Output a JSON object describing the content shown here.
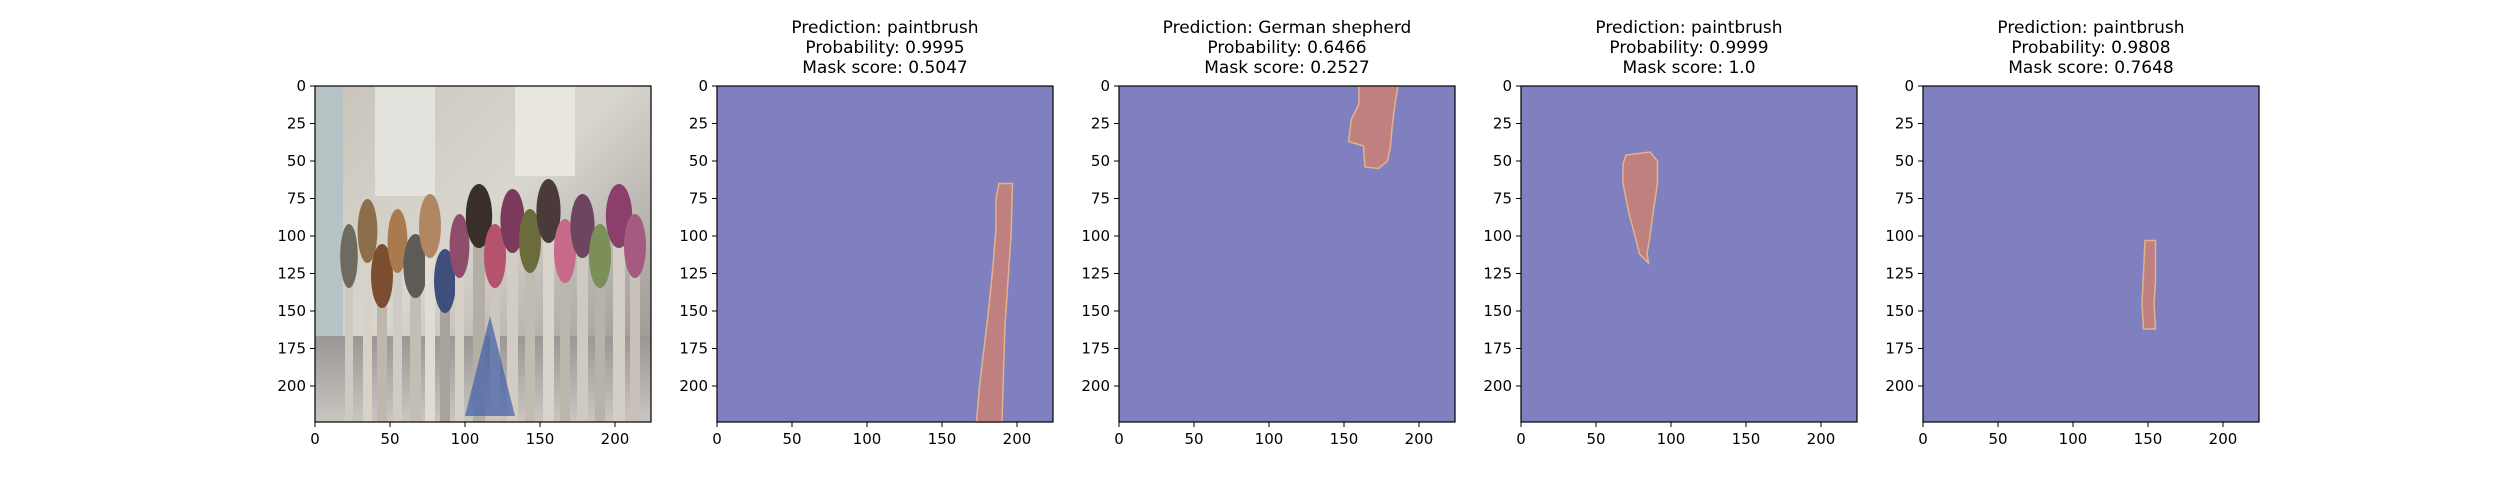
{
  "figure": {
    "panel_count": 5
  },
  "colors": {
    "mask_background": "#8080c0",
    "mask_region": "#c08080",
    "mask_edge": "#e0b48a",
    "axis": "#000000"
  },
  "chart_data": [
    {
      "type": "image",
      "image_content": "photo of paintbrushes standing in a jar",
      "title_lines": [],
      "x_ticks": [
        "0",
        "50",
        "100",
        "150",
        "200"
      ],
      "y_ticks": [
        "0",
        "25",
        "50",
        "75",
        "100",
        "125",
        "150",
        "175",
        "200"
      ],
      "xlim": [
        0,
        224
      ],
      "ylim": [
        224,
        0
      ]
    },
    {
      "type": "heatmap",
      "title_lines": [
        "Prediction: paintbrush",
        "Probability: 0.9995",
        "Mask score: 0.5047"
      ],
      "prediction": "paintbrush",
      "probability": 0.9995,
      "mask_score": 0.5047,
      "x_ticks": [
        "0",
        "50",
        "100",
        "150",
        "200"
      ],
      "y_ticks": [
        "0",
        "25",
        "50",
        "75",
        "100",
        "125",
        "150",
        "175",
        "200"
      ],
      "xlim": [
        0,
        224
      ],
      "ylim": [
        224,
        0
      ],
      "mask_polygon": [
        [
          188,
          65
        ],
        [
          197,
          65
        ],
        [
          196,
          100
        ],
        [
          194,
          130
        ],
        [
          192,
          160
        ],
        [
          191,
          190
        ],
        [
          190,
          224
        ],
        [
          173,
          224
        ],
        [
          175,
          200
        ],
        [
          178,
          175
        ],
        [
          181,
          150
        ],
        [
          184,
          120
        ],
        [
          186,
          95
        ],
        [
          186,
          75
        ]
      ]
    },
    {
      "type": "heatmap",
      "title_lines": [
        "Prediction: German shepherd",
        "Probability: 0.6466",
        "Mask score: 0.2527"
      ],
      "prediction": "German shepherd",
      "probability": 0.6466,
      "mask_score": 0.2527,
      "x_ticks": [
        "0",
        "50",
        "100",
        "150",
        "200"
      ],
      "y_ticks": [
        "0",
        "25",
        "50",
        "75",
        "100",
        "125",
        "150",
        "175",
        "200"
      ],
      "xlim": [
        0,
        224
      ],
      "ylim": [
        224,
        0
      ],
      "mask_polygon": [
        [
          160,
          0
        ],
        [
          186,
          0
        ],
        [
          184,
          12
        ],
        [
          182,
          28
        ],
        [
          181,
          40
        ],
        [
          179,
          50
        ],
        [
          173,
          55
        ],
        [
          164,
          54
        ],
        [
          163,
          40
        ],
        [
          153,
          37
        ],
        [
          155,
          22
        ],
        [
          160,
          12
        ]
      ]
    },
    {
      "type": "heatmap",
      "title_lines": [
        "Prediction: paintbrush",
        "Probability: 0.9999",
        "Mask score: 1.0"
      ],
      "prediction": "paintbrush",
      "probability": 0.9999,
      "mask_score": 1.0,
      "x_ticks": [
        "0",
        "50",
        "100",
        "150",
        "200"
      ],
      "y_ticks": [
        "0",
        "25",
        "50",
        "75",
        "100",
        "125",
        "150",
        "175",
        "200"
      ],
      "xlim": [
        0,
        224
      ],
      "ylim": [
        224,
        0
      ],
      "mask_polygon": [
        [
          70,
          46
        ],
        [
          86,
          44
        ],
        [
          91,
          50
        ],
        [
          91,
          65
        ],
        [
          88,
          85
        ],
        [
          86,
          100
        ],
        [
          84,
          112
        ],
        [
          85,
          118
        ],
        [
          79,
          112
        ],
        [
          76,
          100
        ],
        [
          72,
          85
        ],
        [
          68,
          65
        ],
        [
          68,
          52
        ]
      ]
    },
    {
      "type": "heatmap",
      "title_lines": [
        "Prediction: paintbrush",
        "Probability: 0.9808",
        "Mask score: 0.7648"
      ],
      "prediction": "paintbrush",
      "probability": 0.9808,
      "mask_score": 0.7648,
      "x_ticks": [
        "0",
        "50",
        "100",
        "150",
        "200"
      ],
      "y_ticks": [
        "0",
        "25",
        "50",
        "75",
        "100",
        "125",
        "150",
        "175",
        "200"
      ],
      "xlim": [
        0,
        224
      ],
      "ylim": [
        224,
        0
      ],
      "mask_polygon": [
        [
          148,
          103
        ],
        [
          155,
          103
        ],
        [
          155,
          130
        ],
        [
          154,
          145
        ],
        [
          155,
          162
        ],
        [
          147,
          162
        ],
        [
          146,
          145
        ],
        [
          147,
          125
        ]
      ]
    }
  ]
}
